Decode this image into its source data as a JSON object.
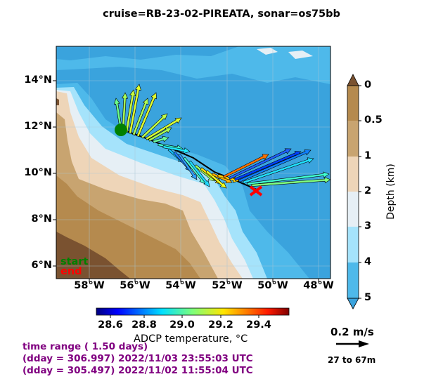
{
  "title": "cruise=RB-23-02-PIREATA,   sonar=os75bb",
  "map": {
    "lat_ticks": [
      "14°N",
      "12°N",
      "10°N",
      "8°N",
      "6°N"
    ],
    "lon_ticks": [
      "58°W",
      "56°W",
      "54°W",
      "52°W",
      "50°W",
      "48°W"
    ],
    "lon_range": [
      -59.5,
      -47.7
    ],
    "lat_range": [
      5.5,
      15.4
    ],
    "track_start": {
      "lon": -56.4,
      "lat": 11.9
    },
    "track_end": {
      "lon": -50.7,
      "lat": 9.4
    },
    "start_label": "start",
    "end_label": "end",
    "colors": {
      "start": "#008000",
      "end": "#ff0000"
    }
  },
  "depth_colorbar": {
    "label": "Depth (km)",
    "ticks": [
      "0",
      "0.5",
      "1",
      "2",
      "3",
      "4",
      "5"
    ],
    "colors": [
      "#7a5230",
      "#b58a4e",
      "#c8a470",
      "#eed5b8",
      "#e6eff5",
      "#a5e3fb",
      "#4eb9ea",
      "#3aa3dd"
    ]
  },
  "temp_colorbar": {
    "label": "ADCP temperature, °C",
    "ticks": [
      "28.6",
      "28.8",
      "29.0",
      "29.2",
      "29.4"
    ],
    "range": [
      28.5,
      29.55
    ]
  },
  "scale": {
    "speed_label": "0.2 m/s",
    "depth_range": "27 to 67m"
  },
  "info": {
    "line1": "time range ( 1.50 days)",
    "line2": "(dday = 306.997) 2022/11/03 23:55:03 UTC",
    "line3": "(dday = 305.497) 2022/11/02 11:55:04 UTC"
  }
}
